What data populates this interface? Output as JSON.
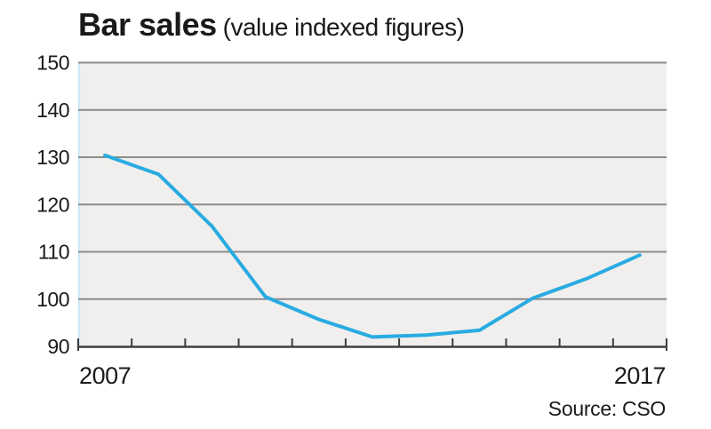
{
  "title": {
    "main": "Bar sales",
    "sub": "(value indexed figures)"
  },
  "source": "Source: CSO",
  "colors": {
    "line": "#29abe2",
    "plot_bg": "#f0efed",
    "gridline": "#8c8c8c",
    "axis": "#3d3d3d",
    "left_edge": "#cfe9f5",
    "text": "#1a1a1a",
    "page_bg": "#ffffff"
  },
  "chart_data": {
    "type": "line",
    "title": "Bar sales",
    "subtitle": "(value indexed figures)",
    "source": "Source: CSO",
    "x": [
      2007,
      2008,
      2009,
      2010,
      2011,
      2012,
      2013,
      2014,
      2015,
      2016,
      2017
    ],
    "values": [
      130.4,
      126.4,
      115.4,
      100.5,
      95.7,
      92.0,
      92.4,
      93.4,
      100.2,
      104.3,
      109.3
    ],
    "series_name": "Bar sales value index",
    "ylim": [
      90,
      150
    ],
    "yticks": [
      90,
      100,
      110,
      120,
      130,
      140,
      150
    ],
    "xtick_labels_shown": [
      "2007",
      "2017"
    ],
    "grid": "horizontal",
    "legend": "none",
    "line_width": 4
  }
}
